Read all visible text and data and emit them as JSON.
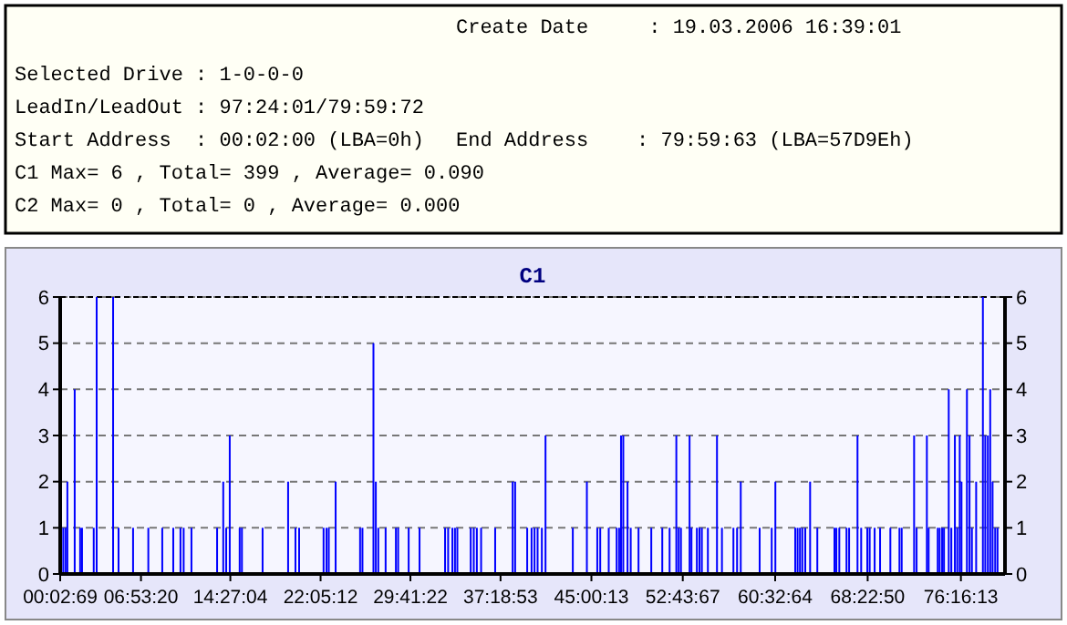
{
  "chart_data": {
    "type": "bar",
    "title": "C1",
    "annotations": [
      "Create Date     : 19.03.2006 16:39:01",
      "Selected Drive : 1-0-0-0",
      "LeadIn/LeadOut : 97:24:01/79:59:72",
      "Start Address  : 00:02:00 (LBA=0h)",
      "End Address    : 79:59:63 (LBA=57D9Eh)",
      "C1 Max= 6 , Total= 399 , Average= 0.090",
      "C2 Max= 0 , Total= 0 , Average= 0.000"
    ],
    "xlim": [
      0.0525,
      80
    ],
    "ylim": [
      0,
      6
    ],
    "yticks": [
      0,
      1,
      2,
      3,
      4,
      5,
      6
    ],
    "y2lim": [
      0,
      6
    ],
    "y2ticks": [
      0,
      1,
      2,
      3,
      4,
      5,
      6
    ],
    "xticks": [
      {
        "value": 0.0525,
        "label": "00:02:69"
      },
      {
        "value": 6.8889,
        "label": "06:53:20"
      },
      {
        "value": 14.4511,
        "label": "14:27:04"
      },
      {
        "value": 22.0867,
        "label": "22:05:12"
      },
      {
        "value": 29.6894,
        "label": "29:41:22"
      },
      {
        "value": 37.3147,
        "label": "37:18:53"
      },
      {
        "value": 45.0036,
        "label": "45:00:13"
      },
      {
        "value": 52.7353,
        "label": "52:43:67"
      },
      {
        "value": 60.5511,
        "label": "60:32:64"
      },
      {
        "value": 68.3806,
        "label": "68:22:50"
      },
      {
        "value": 76.2703,
        "label": "76:16:13"
      }
    ],
    "grid": "y",
    "series": [
      {
        "color": "#0000ff",
        "x": [
          0.31,
          0.5,
          0.66,
          1.28,
          1.74,
          1.9,
          2.89,
          3.14,
          4.53,
          4.99,
          6.22,
          7.51,
          8.69,
          9.62,
          10.23,
          10.5,
          11.16,
          13.33,
          13.85,
          14.1,
          14.4,
          15.24,
          15.43,
          17.18,
          19.34,
          19.96,
          20.27,
          22.34,
          22.59,
          22.78,
          23.36,
          25.43,
          25.63,
          26.56,
          26.76,
          26.97,
          27.59,
          28.46,
          28.65,
          29.54,
          30.46,
          32.62,
          32.88,
          33.24,
          33.46,
          33.66,
          34.79,
          35.05,
          35.31,
          35.67,
          36.86,
          38.34,
          38.55,
          39.57,
          39.94,
          40.19,
          40.45,
          40.81,
          41.12,
          43.43,
          44.62,
          45.5,
          45.75,
          46.47,
          47.14,
          47.35,
          47.51,
          47.7,
          48.06,
          48.33,
          48.99,
          50.07,
          51.0,
          51.62,
          52.19,
          52.39,
          52.58,
          53.31,
          53.47,
          53.93,
          54.15,
          54.35,
          54.86,
          55.63,
          56.05,
          57.02,
          57.33,
          57.64,
          59.24,
          60.26,
          60.57,
          62.25,
          62.45,
          62.65,
          62.85,
          63.1,
          63.51,
          64.12,
          65.57,
          65.73,
          65.98,
          66.59,
          66.81,
          67.52,
          67.83,
          68.35,
          68.55,
          68.97,
          69.43,
          70.3,
          71.07,
          71.26,
          72.31,
          72.52,
          73.39,
          73.54,
          74.31,
          74.47,
          74.68,
          74.84,
          75.24,
          75.46,
          75.76,
          75.96,
          76.17,
          76.32,
          76.78,
          77.0,
          77.2,
          77.56,
          78.13,
          78.33,
          78.55,
          78.75,
          78.95,
          79.17,
          79.37
        ],
        "values": [
          1,
          1,
          2,
          4,
          1,
          1,
          1,
          6,
          6,
          1,
          1,
          1,
          1,
          1,
          1,
          1,
          1,
          1,
          2,
          1,
          3,
          1,
          1,
          1,
          2,
          1,
          1,
          1,
          1,
          1,
          2,
          1,
          1,
          5,
          2,
          1,
          1,
          1,
          1,
          1,
          1,
          1,
          1,
          1,
          1,
          1,
          1,
          1,
          1,
          1,
          1,
          2,
          2,
          1,
          1,
          1,
          1,
          1,
          3,
          1,
          2,
          1,
          1,
          1,
          1,
          1,
          3,
          3,
          2,
          1,
          1,
          1,
          1,
          1,
          3,
          1,
          1,
          3,
          1,
          1,
          1,
          1,
          1,
          3,
          1,
          1,
          1,
          2,
          1,
          1,
          2,
          1,
          1,
          1,
          1,
          1,
          2,
          1,
          1,
          1,
          1,
          1,
          1,
          3,
          1,
          1,
          1,
          1,
          1,
          1,
          1,
          1,
          3,
          1,
          3,
          1,
          1,
          1,
          1,
          1,
          4,
          1,
          3,
          1,
          3,
          2,
          4,
          3,
          1,
          2,
          6,
          3,
          3,
          4,
          2,
          1,
          1
        ]
      }
    ]
  }
}
